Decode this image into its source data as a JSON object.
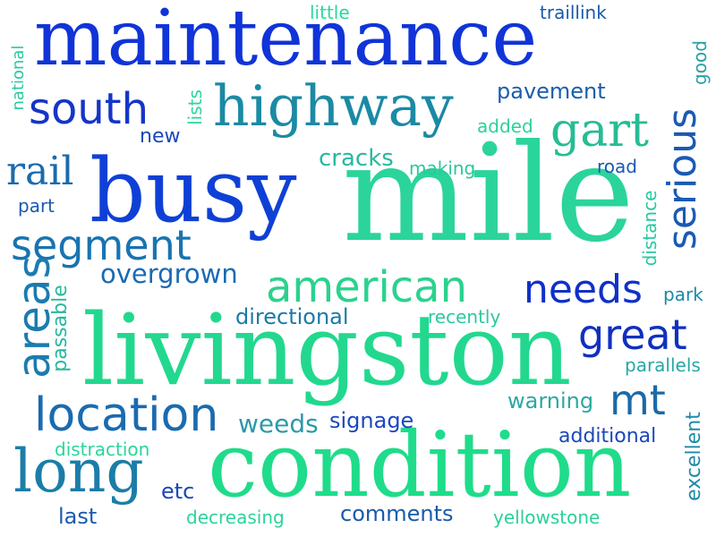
{
  "words": [
    {
      "text": "mile",
      "color": "#2bd49a"
    },
    {
      "text": "livingston",
      "color": "#22d88e"
    },
    {
      "text": "condition",
      "color": "#1fdc8a"
    },
    {
      "text": "busy",
      "color": "#0f40d6"
    },
    {
      "text": "maintenance",
      "color": "#1034d8"
    },
    {
      "text": "highway",
      "color": "#1b8aa4"
    },
    {
      "text": "long",
      "color": "#1b7da8"
    },
    {
      "text": "location",
      "color": "#1a6bb0"
    },
    {
      "text": "segment",
      "color": "#1974b0"
    },
    {
      "text": "american",
      "color": "#2bd28e"
    },
    {
      "text": "south",
      "color": "#1535c8"
    },
    {
      "text": "areas",
      "color": "#1c7bb0"
    },
    {
      "text": "gart",
      "color": "#27bc94"
    },
    {
      "text": "great",
      "color": "#1030c0"
    },
    {
      "text": "needs",
      "color": "#1030c8"
    },
    {
      "text": "serious",
      "color": "#1a5ab4"
    },
    {
      "text": "mt",
      "color": "#1a6aa8"
    },
    {
      "text": "rail",
      "color": "#1a6aae"
    },
    {
      "text": "overgrown",
      "color": "#1a6ab4"
    },
    {
      "text": "directional",
      "color": "#1a7aa8"
    },
    {
      "text": "cracks",
      "color": "#27b8a0"
    },
    {
      "text": "weeds",
      "color": "#2a9aa8"
    },
    {
      "text": "signage",
      "color": "#1a48c0"
    },
    {
      "text": "pavement",
      "color": "#1a5eac"
    },
    {
      "text": "comments",
      "color": "#1a5aa8"
    },
    {
      "text": "warning",
      "color": "#2ba8a0"
    },
    {
      "text": "additional",
      "color": "#1a48b8"
    },
    {
      "text": "excellent",
      "color": "#1e8aa8"
    },
    {
      "text": "passable",
      "color": "#26b89c"
    },
    {
      "text": "distance",
      "color": "#27c8a0"
    },
    {
      "text": "parallels",
      "color": "#26a8a4"
    },
    {
      "text": "recently",
      "color": "#2bc8a0"
    },
    {
      "text": "etc",
      "color": "#1a48b8"
    },
    {
      "text": "last",
      "color": "#1a5ab0"
    },
    {
      "text": "decreasing",
      "color": "#2bd49a"
    },
    {
      "text": "yellowstone",
      "color": "#2ad09a"
    },
    {
      "text": "distraction",
      "color": "#2ad69a"
    },
    {
      "text": "new",
      "color": "#1a48b8"
    },
    {
      "text": "part",
      "color": "#1a5ab0"
    },
    {
      "text": "making",
      "color": "#2ac89c"
    },
    {
      "text": "added",
      "color": "#2ad29a"
    },
    {
      "text": "road",
      "color": "#1a5ab0"
    },
    {
      "text": "park",
      "color": "#1a8aa8"
    },
    {
      "text": "lists",
      "color": "#2ad89a"
    },
    {
      "text": "national",
      "color": "#2ac8a0"
    },
    {
      "text": "good",
      "color": "#2aa0a4"
    },
    {
      "text": "little",
      "color": "#2ad89a"
    },
    {
      "text": "traillink",
      "color": "#1a5aa8"
    }
  ]
}
